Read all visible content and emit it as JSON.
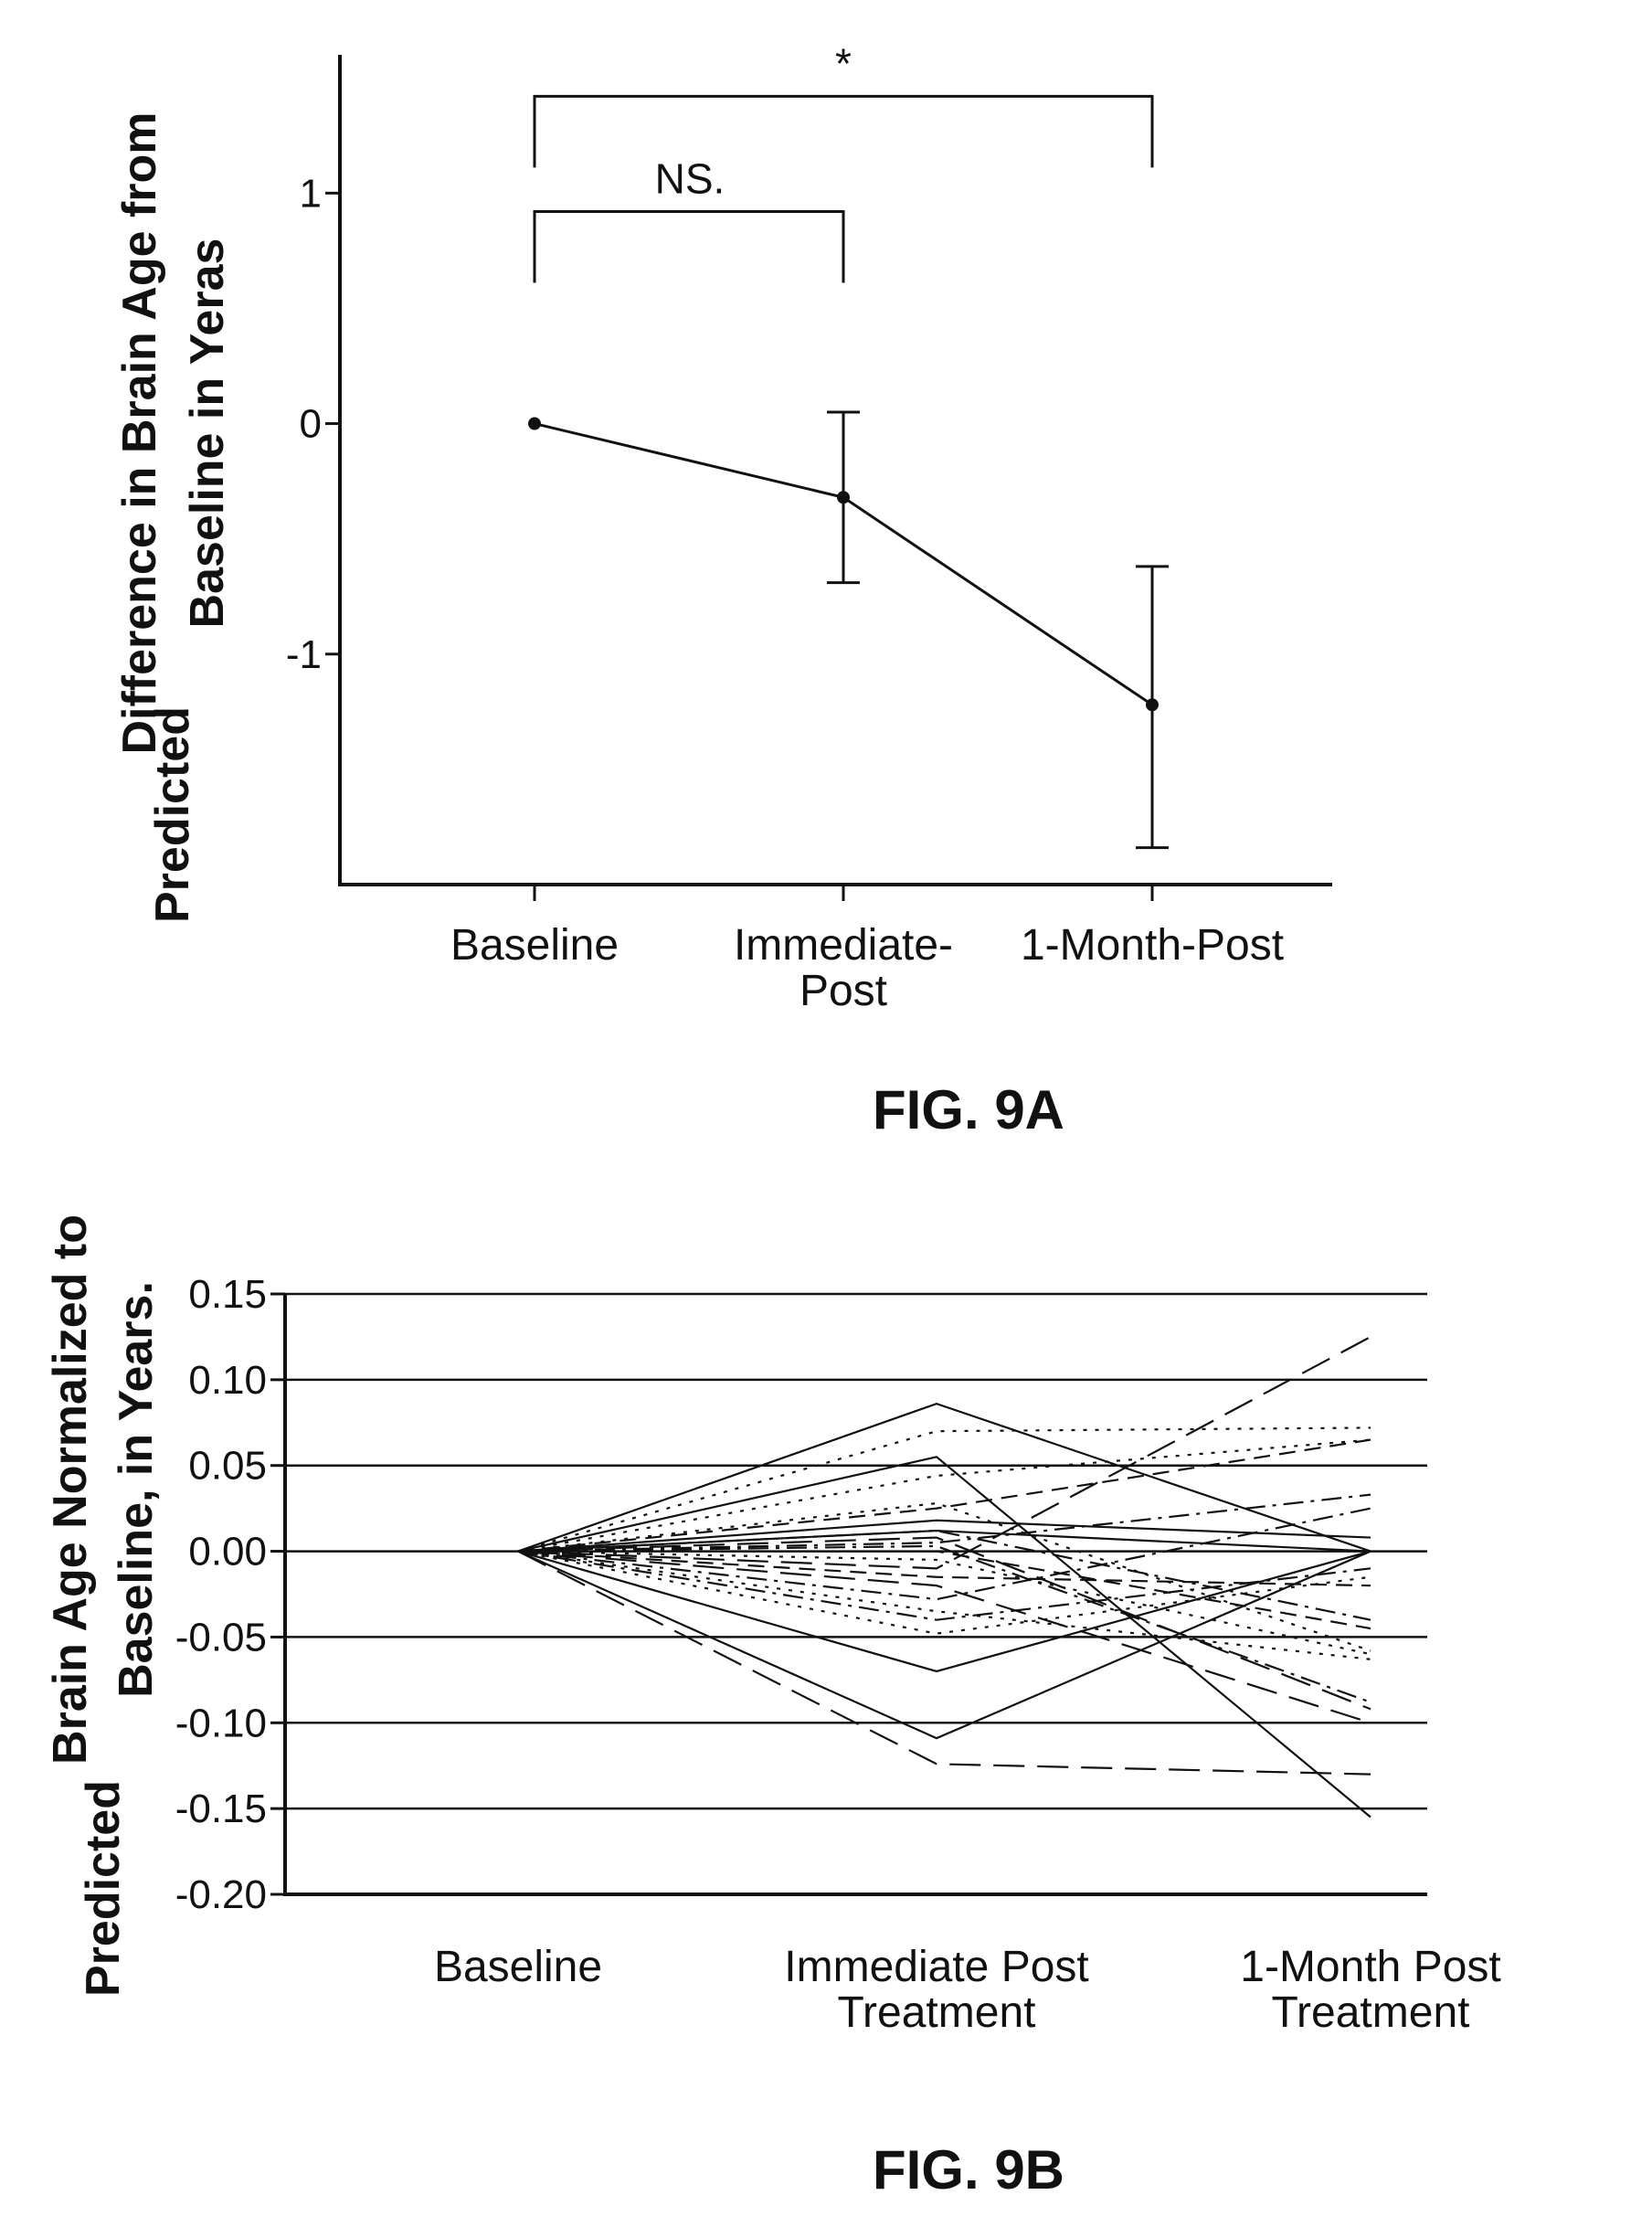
{
  "charts": [
    {
      "figure_label": "FIG. 9A",
      "chart_data": {
        "type": "line",
        "title": "",
        "xlabel": "",
        "ylabel_lines": [
          "Difference in Brain Age from",
          "Baseline in Yeras"
        ],
        "ylabel_prefix": "Predicted",
        "categories": [
          [
            "Baseline"
          ],
          [
            "Immediate-",
            "Post"
          ],
          [
            "1-Month-Post"
          ]
        ],
        "series": [
          {
            "values": [
              0,
              -0.32,
              -1.22
            ],
            "err_low": [
              0,
              -0.69,
              -1.84
            ],
            "err_high": [
              0,
              0.05,
              -0.62
            ]
          }
        ],
        "yticks": [
          1,
          0,
          -1
        ],
        "ytick_labels": [
          "1",
          "0",
          "-1"
        ],
        "ylim": [
          -2.0,
          1.6
        ],
        "annotations": [
          {
            "text": "NS.",
            "from": 0,
            "to": 1,
            "level": 0.92
          },
          {
            "text": "*",
            "from": 0,
            "to": 2,
            "level": 1.42
          }
        ],
        "grid": false
      }
    },
    {
      "figure_label": "FIG. 9B",
      "chart_data": {
        "type": "line",
        "title": "",
        "xlabel": "",
        "ylabel_lines": [
          "Brain Age Normalized to",
          "Baseline, in Years."
        ],
        "ylabel_prefix": "Predicted",
        "categories": [
          [
            "Baseline"
          ],
          [
            "Immediate Post",
            "Treatment"
          ],
          [
            "1-Month Post",
            "Treatment"
          ]
        ],
        "yticks": [
          0.15,
          0.1,
          0.05,
          0.0,
          -0.05,
          -0.1,
          -0.15,
          -0.2
        ],
        "ytick_labels": [
          "0.15",
          "0.10",
          "0.05",
          "0.00",
          "-0.05",
          "-0.10",
          "-0.15",
          "-0.20"
        ],
        "ylim": [
          -0.2,
          0.15
        ],
        "grid": true,
        "series": [
          {
            "values": [
              0,
              0.086,
              0.0
            ],
            "style": "solid"
          },
          {
            "values": [
              0,
              0.055,
              -0.155
            ],
            "style": "solid"
          },
          {
            "values": [
              0,
              0.018,
              0.008
            ],
            "style": "solid"
          },
          {
            "values": [
              0,
              -0.07,
              0.0
            ],
            "style": "solid"
          },
          {
            "values": [
              0,
              -0.109,
              0.0
            ],
            "style": "solid"
          },
          {
            "values": [
              0,
              0.012,
              0.0
            ],
            "style": "solid"
          },
          {
            "values": [
              0,
              0.07,
              0.072
            ],
            "style": "dotted"
          },
          {
            "values": [
              0,
              0.044,
              0.065
            ],
            "style": "dotted"
          },
          {
            "values": [
              0,
              0.028,
              -0.058
            ],
            "style": "dotted"
          },
          {
            "values": [
              0,
              -0.005,
              -0.06
            ],
            "style": "dotted"
          },
          {
            "values": [
              0,
              -0.035,
              -0.063
            ],
            "style": "dotted"
          },
          {
            "values": [
              0,
              -0.048,
              -0.015
            ],
            "style": "dotted"
          },
          {
            "values": [
              0,
              -0.124,
              -0.13
            ],
            "style": "longdash"
          },
          {
            "values": [
              0,
              -0.01,
              0.125
            ],
            "style": "longdash"
          },
          {
            "values": [
              0,
              0.008,
              -0.092
            ],
            "style": "longdash"
          },
          {
            "values": [
              0,
              -0.02,
              -0.1
            ],
            "style": "longdash"
          },
          {
            "values": [
              0,
              0.025,
              0.065
            ],
            "style": "dashed"
          },
          {
            "values": [
              0,
              0.0,
              -0.045
            ],
            "style": "dashed"
          },
          {
            "values": [
              0,
              -0.015,
              -0.02
            ],
            "style": "dashed"
          },
          {
            "values": [
              0,
              0.005,
              0.033
            ],
            "style": "dashdot"
          },
          {
            "values": [
              0,
              -0.028,
              0.025
            ],
            "style": "dashdot"
          },
          {
            "values": [
              0,
              0.012,
              -0.04
            ],
            "style": "dashdot"
          },
          {
            "values": [
              0,
              -0.04,
              -0.01
            ],
            "style": "dashdot"
          },
          {
            "values": [
              0,
              0.003,
              -0.088
            ],
            "style": "dashdot"
          }
        ]
      }
    }
  ]
}
